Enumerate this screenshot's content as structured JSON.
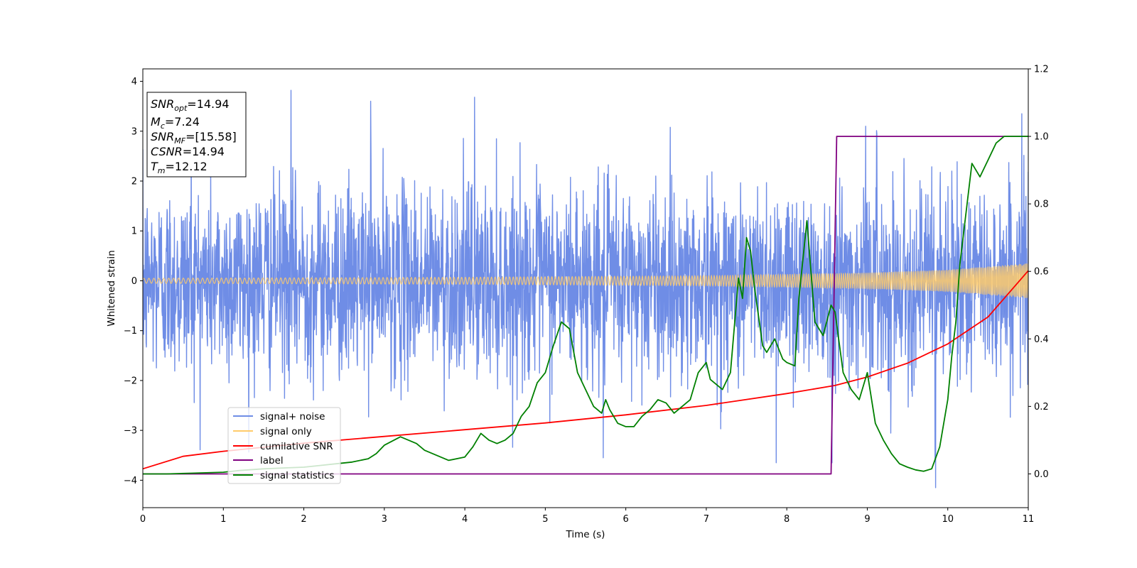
{
  "chart_data": {
    "type": "line",
    "xlabel": "Time (s)",
    "ylabel": "Whitened strain",
    "xlim": [
      0,
      11
    ],
    "ylim": [
      -4.55,
      4.25
    ],
    "y2lim": [
      -0.1,
      1.2
    ],
    "xticks": [
      "0",
      "1",
      "2",
      "3",
      "4",
      "5",
      "6",
      "7",
      "8",
      "9",
      "10",
      "11"
    ],
    "yticks": [
      "4",
      "3",
      "2",
      "1",
      "0",
      "−1",
      "−2",
      "−3",
      "−4"
    ],
    "y2ticks": [
      "1.2",
      "1.0",
      "0.8",
      "0.6",
      "0.4",
      "0.2",
      "0.0"
    ],
    "grid": false,
    "legend_position": "lower-left",
    "stats_box": {
      "snr_opt": {
        "sym": "SNR",
        "sub": "opt",
        "val": "=14.94"
      },
      "mc": {
        "sym": "M",
        "sub": "c",
        "val": "=7.24"
      },
      "snr_mf": {
        "sym": "SNR",
        "sub": "MF",
        "val": "=[15.58]"
      },
      "csnr": {
        "sym": "CSNR",
        "val": "=14.94"
      },
      "tm": {
        "sym": "T",
        "sub": "m",
        "val": "=12.12"
      }
    },
    "series": [
      {
        "name": "signal+ noise",
        "color": "#6f8de6",
        "axis": "left",
        "kind": "noise",
        "noise_sigma": 0.95,
        "peak_values": [
          [
            1.84,
            3.82
          ],
          [
            4.12,
            3.68
          ],
          [
            2.83,
            3.6
          ],
          [
            0.6,
            3.3
          ],
          [
            9.85,
            -4.15
          ],
          [
            7.87,
            -3.65
          ],
          [
            8.56,
            -3.65
          ],
          [
            9.84,
            -3.62
          ],
          [
            5.72,
            -3.55
          ],
          [
            8.98,
            3.1
          ],
          [
            9.12,
            2.95
          ],
          [
            10.92,
            3.35
          ]
        ]
      },
      {
        "name": "signal only",
        "color": "#ffcb6b",
        "axis": "left",
        "kind": "chirp",
        "amplitude_envelope": [
          [
            0,
            0.05
          ],
          [
            4,
            0.07
          ],
          [
            7,
            0.1
          ],
          [
            9,
            0.16
          ],
          [
            10,
            0.22
          ],
          [
            11,
            0.35
          ]
        ]
      },
      {
        "name": "cumilative SNR",
        "color": "#ff0000",
        "axis": "right",
        "x": [
          0,
          0.5,
          1,
          2,
          3,
          4,
          5,
          6,
          7,
          8,
          8.6,
          9,
          9.5,
          10,
          10.5,
          11
        ],
        "values": [
          0.015,
          0.052,
          0.067,
          0.091,
          0.111,
          0.131,
          0.151,
          0.175,
          0.203,
          0.238,
          0.262,
          0.287,
          0.328,
          0.385,
          0.465,
          0.602
        ]
      },
      {
        "name": "label",
        "color": "#800080",
        "axis": "right",
        "x": [
          0,
          8.55,
          8.62,
          11
        ],
        "values": [
          0.0,
          0.0,
          1.0,
          1.0
        ]
      },
      {
        "name": "signal statistics",
        "color": "#008000",
        "axis": "right",
        "x": [
          0,
          0.3,
          0.6,
          1.0,
          1.2,
          1.5,
          1.8,
          2.0,
          2.2,
          2.4,
          2.6,
          2.8,
          2.9,
          3.0,
          3.2,
          3.4,
          3.5,
          3.7,
          3.8,
          4.0,
          4.1,
          4.2,
          4.3,
          4.4,
          4.5,
          4.6,
          4.7,
          4.8,
          4.9,
          5.0,
          5.1,
          5.2,
          5.3,
          5.4,
          5.5,
          5.6,
          5.7,
          5.75,
          5.8,
          5.9,
          6.0,
          6.1,
          6.2,
          6.3,
          6.4,
          6.5,
          6.6,
          6.7,
          6.8,
          6.9,
          7.0,
          7.05,
          7.2,
          7.3,
          7.4,
          7.45,
          7.5,
          7.55,
          7.6,
          7.7,
          7.75,
          7.85,
          7.95,
          8.0,
          8.1,
          8.15,
          8.25,
          8.35,
          8.45,
          8.55,
          8.6,
          8.7,
          8.8,
          8.9,
          9.0,
          9.1,
          9.2,
          9.3,
          9.4,
          9.5,
          9.6,
          9.7,
          9.8,
          9.9,
          10.0,
          10.05,
          10.1,
          10.15,
          10.3,
          10.4,
          10.5,
          10.6,
          10.7,
          10.8,
          11.0
        ],
        "values": [
          0.0,
          0.0,
          0.002,
          0.005,
          0.01,
          0.015,
          0.018,
          0.02,
          0.025,
          0.03,
          0.035,
          0.045,
          0.06,
          0.085,
          0.11,
          0.09,
          0.07,
          0.05,
          0.04,
          0.05,
          0.08,
          0.12,
          0.1,
          0.09,
          0.1,
          0.12,
          0.17,
          0.2,
          0.27,
          0.3,
          0.38,
          0.45,
          0.43,
          0.3,
          0.25,
          0.2,
          0.18,
          0.22,
          0.19,
          0.15,
          0.14,
          0.14,
          0.17,
          0.19,
          0.22,
          0.21,
          0.18,
          0.2,
          0.22,
          0.3,
          0.33,
          0.28,
          0.25,
          0.3,
          0.58,
          0.52,
          0.7,
          0.66,
          0.55,
          0.38,
          0.36,
          0.4,
          0.34,
          0.33,
          0.32,
          0.52,
          0.75,
          0.45,
          0.41,
          0.5,
          0.48,
          0.3,
          0.25,
          0.22,
          0.3,
          0.15,
          0.1,
          0.06,
          0.03,
          0.02,
          0.012,
          0.008,
          0.015,
          0.08,
          0.22,
          0.35,
          0.45,
          0.62,
          0.92,
          0.88,
          0.93,
          0.98,
          1.0,
          1.0,
          1.0
        ]
      }
    ]
  }
}
